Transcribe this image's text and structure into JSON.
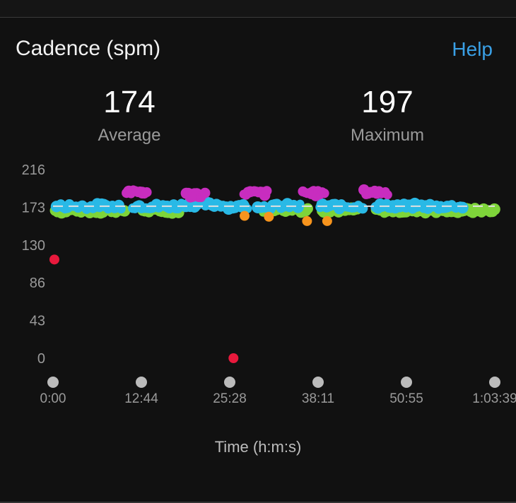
{
  "header": {
    "title": "Cadence (spm)",
    "help_label": "Help"
  },
  "stats": {
    "average_value": "174",
    "average_label": "Average",
    "maximum_value": "197",
    "maximum_label": "Maximum"
  },
  "chart_data": {
    "type": "scatter",
    "title": "Cadence (spm)",
    "xlabel": "Time (h:m:s)",
    "ylabel": "",
    "y_ticks": [
      "216",
      "173",
      "130",
      "86",
      "43",
      "0"
    ],
    "ylim": [
      0,
      216
    ],
    "x_ticks": [
      "0:00",
      "12:44",
      "25:28",
      "38:11",
      "50:55",
      "1:03:39"
    ],
    "xlim_minutes": [
      0,
      63.65
    ],
    "average_line": 174,
    "colors": {
      "green": "#7ed43a",
      "blue": "#29b9e6",
      "magenta": "#c82dbf",
      "orange": "#f7941d",
      "red": "#e8193c",
      "avg": "#e0e0e0"
    },
    "series": [
      {
        "color_key": "green",
        "segments": [
          [
            0.3,
            10.3,
            169
          ],
          [
            12.9,
            18.4,
            169
          ],
          [
            30.3,
            36.7,
            170
          ],
          [
            38.7,
            44.2,
            170
          ],
          [
            46.5,
            63.6,
            169
          ]
        ]
      },
      {
        "color_key": "blue",
        "segments": [
          [
            0.5,
            9.8,
            174
          ],
          [
            11.5,
            18.0,
            174
          ],
          [
            18.5,
            24.5,
            176
          ],
          [
            25.0,
            28.0,
            174
          ],
          [
            29.5,
            35.6,
            174
          ],
          [
            38.5,
            44.6,
            174
          ],
          [
            46.5,
            59.0,
            174
          ]
        ]
      },
      {
        "color_key": "magenta",
        "segments": [
          [
            10.6,
            13.5,
            190
          ],
          [
            19.2,
            21.9,
            187
          ],
          [
            27.5,
            30.8,
            189
          ],
          [
            36.0,
            39.1,
            189
          ],
          [
            44.8,
            48.2,
            190
          ]
        ]
      },
      {
        "color_key": "orange",
        "points": [
          [
            27.6,
            163
          ],
          [
            31.1,
            162
          ],
          [
            36.6,
            157
          ],
          [
            39.5,
            157
          ]
        ]
      },
      {
        "color_key": "red",
        "points": [
          [
            0.2,
            113
          ],
          [
            26.0,
            0
          ]
        ]
      }
    ]
  }
}
